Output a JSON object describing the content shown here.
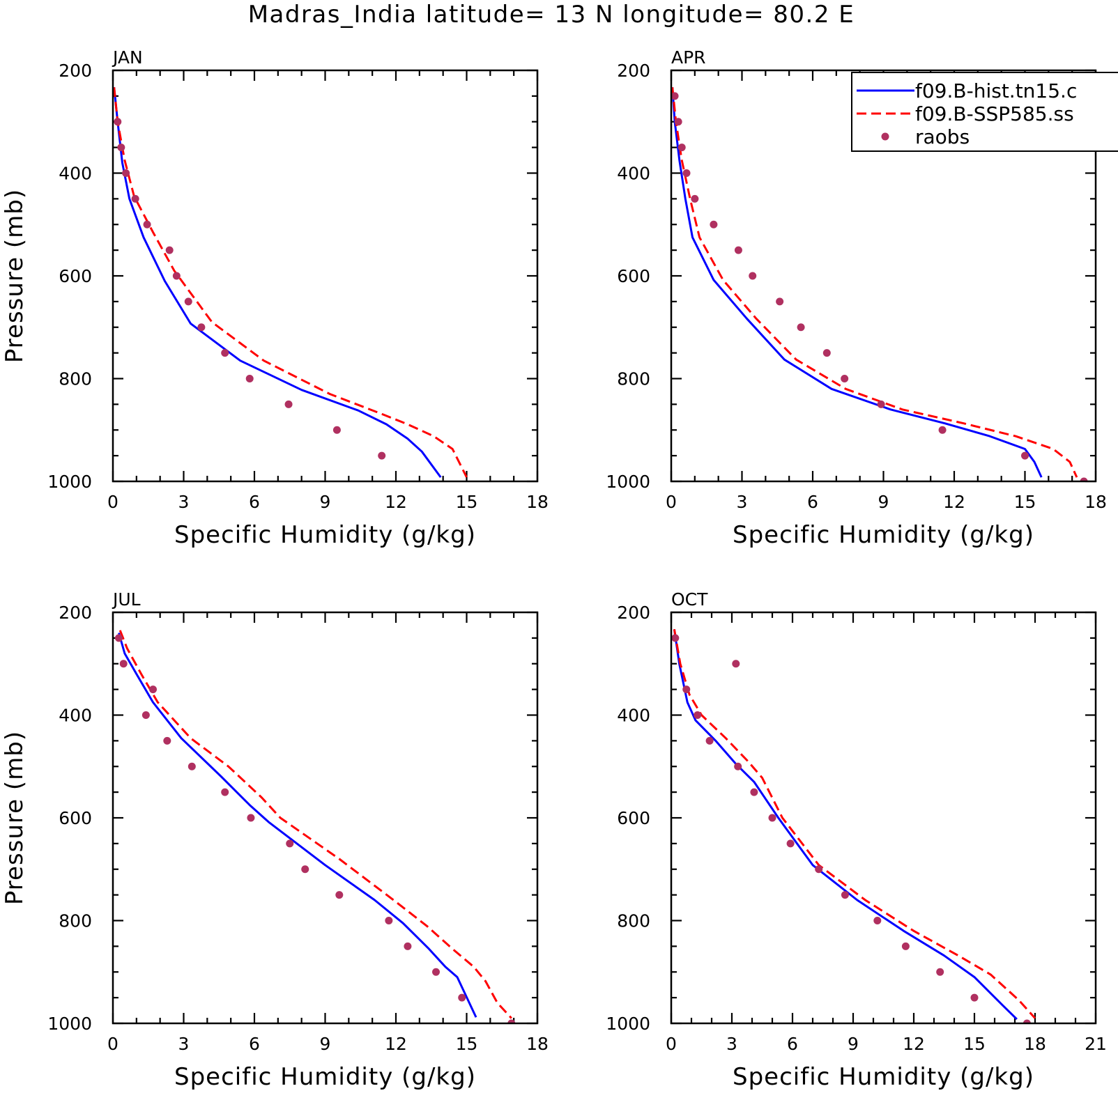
{
  "figure": {
    "title": "Madras_India  latitude= 13 N longitude= 80.2 E"
  },
  "legend": {
    "entries": [
      {
        "label": "f09.B-hist.tn15.c",
        "style": "solid",
        "color": "#0000ff"
      },
      {
        "label": "f09.B-SSP585.ss",
        "style": "dashed",
        "color": "#ff0000"
      },
      {
        "label": "raobs",
        "style": "marker",
        "color": "#b03060"
      }
    ]
  },
  "chart_data": [
    {
      "type": "line",
      "panel": "JAN",
      "xlabel": "Specific Humidity (g/kg)",
      "ylabel": "Pressure (mb)",
      "xlim": [
        0,
        18
      ],
      "ylim": [
        200,
        1000
      ],
      "y_inverted": true,
      "xticks": [
        "0",
        "3",
        "6",
        "9",
        "12",
        "15",
        "18"
      ],
      "yticks": [
        "200",
        "400",
        "600",
        "800",
        "1000"
      ],
      "series": [
        {
          "name": "f09.B-hist.tn15.c",
          "color": "#0000ff",
          "style": "solid",
          "x": [
            0.05,
            0.2,
            0.4,
            0.7,
            1.3,
            2.2,
            3.3,
            5.4,
            8.0,
            10.4,
            11.6,
            12.5,
            13.1,
            13.9
          ],
          "y": [
            233,
            300,
            380,
            450,
            525,
            610,
            693,
            765,
            822,
            862,
            889,
            917,
            942,
            992
          ]
        },
        {
          "name": "f09.B-SSP585.ss",
          "color": "#ff0000",
          "style": "dashed",
          "x": [
            0.05,
            0.2,
            0.5,
            0.9,
            1.7,
            2.6,
            4.2,
            6.4,
            9.2,
            11.3,
            12.5,
            13.6,
            14.4,
            15.0
          ],
          "y": [
            233,
            300,
            375,
            445,
            515,
            590,
            690,
            765,
            830,
            867,
            889,
            912,
            937,
            992
          ]
        },
        {
          "name": "raobs",
          "color": "#b03060",
          "style": "marker",
          "x": [
            0.2,
            0.35,
            0.55,
            0.95,
            1.45,
            2.4,
            2.7,
            3.2,
            3.75,
            4.75,
            5.8,
            7.45,
            9.5,
            11.4
          ],
          "y": [
            300,
            350,
            400,
            450,
            500,
            550,
            600,
            650,
            700,
            750,
            800,
            850,
            900,
            950
          ]
        }
      ]
    },
    {
      "type": "line",
      "panel": "APR",
      "xlabel": "Specific Humidity (g/kg)",
      "ylabel": "",
      "xlim": [
        0,
        18
      ],
      "ylim": [
        200,
        1000
      ],
      "y_inverted": true,
      "xticks": [
        "0",
        "3",
        "6",
        "9",
        "12",
        "15",
        "18"
      ],
      "yticks": [
        "200",
        "400",
        "600",
        "800",
        "1000"
      ],
      "series": [
        {
          "name": "f09.B-hist.tn15.c",
          "color": "#0000ff",
          "style": "solid",
          "x": [
            0.05,
            0.15,
            0.35,
            0.6,
            0.9,
            1.8,
            3.2,
            4.8,
            6.8,
            9.3,
            11.6,
            13.5,
            15.0,
            15.4,
            15.7
          ],
          "y": [
            233,
            300,
            375,
            450,
            525,
            608,
            683,
            763,
            820,
            860,
            887,
            912,
            937,
            962,
            992
          ]
        },
        {
          "name": "f09.B-SSP585.ss",
          "color": "#ff0000",
          "style": "dashed",
          "x": [
            0.05,
            0.2,
            0.45,
            0.8,
            1.2,
            2.2,
            3.6,
            5.3,
            7.4,
            9.8,
            12.4,
            14.6,
            16.2,
            16.9,
            17.2
          ],
          "y": [
            233,
            300,
            375,
            450,
            525,
            608,
            683,
            763,
            820,
            860,
            887,
            912,
            937,
            962,
            992
          ]
        },
        {
          "name": "raobs",
          "color": "#b03060",
          "style": "marker",
          "x": [
            0.15,
            0.3,
            0.45,
            0.65,
            1.0,
            1.8,
            2.85,
            3.45,
            4.6,
            5.5,
            6.6,
            7.35,
            8.9,
            11.5,
            15.0,
            17.5
          ],
          "y": [
            250,
            300,
            350,
            400,
            450,
            500,
            550,
            600,
            650,
            700,
            750,
            800,
            850,
            900,
            950,
            1000
          ]
        }
      ]
    },
    {
      "type": "line",
      "panel": "JUL",
      "xlabel": "Specific Humidity (g/kg)",
      "ylabel": "Pressure (mb)",
      "xlim": [
        0,
        18
      ],
      "ylim": [
        200,
        1000
      ],
      "y_inverted": true,
      "xticks": [
        "0",
        "3",
        "6",
        "9",
        "12",
        "15",
        "18"
      ],
      "yticks": [
        "200",
        "400",
        "600",
        "800",
        "1000"
      ],
      "series": [
        {
          "name": "f09.B-hist.tn15.c",
          "color": "#0000ff",
          "style": "solid",
          "x": [
            0.25,
            0.5,
            1.0,
            1.7,
            2.9,
            4.6,
            5.8,
            6.6,
            9.0,
            11.1,
            12.3,
            13.4,
            14.1,
            14.6,
            15.4
          ],
          "y": [
            240,
            280,
            320,
            375,
            445,
            520,
            575,
            608,
            692,
            760,
            805,
            855,
            890,
            910,
            988
          ]
        },
        {
          "name": "f09.B-SSP585.ss",
          "color": "#ff0000",
          "style": "dashed",
          "x": [
            0.3,
            0.6,
            1.2,
            1.9,
            3.3,
            4.9,
            6.3,
            7.1,
            9.6,
            11.9,
            13.3,
            14.4,
            15.3,
            15.8,
            16.3,
            16.9
          ],
          "y": [
            235,
            270,
            320,
            375,
            445,
            500,
            560,
            600,
            680,
            760,
            810,
            855,
            890,
            918,
            960,
            990
          ]
        },
        {
          "name": "raobs",
          "color": "#b03060",
          "style": "marker",
          "x": [
            0.25,
            0.45,
            1.7,
            1.4,
            2.3,
            3.35,
            4.75,
            5.85,
            7.5,
            8.15,
            9.6,
            11.7,
            12.5,
            13.7,
            14.8,
            16.9
          ],
          "y": [
            250,
            300,
            350,
            400,
            450,
            500,
            550,
            600,
            650,
            700,
            750,
            800,
            850,
            900,
            950,
            1000
          ]
        }
      ]
    },
    {
      "type": "line",
      "panel": "OCT",
      "xlabel": "Specific Humidity (g/kg)",
      "ylabel": "",
      "xlim": [
        0,
        21
      ],
      "ylim": [
        200,
        1000
      ],
      "y_inverted": true,
      "xticks": [
        "0",
        "3",
        "6",
        "9",
        "12",
        "15",
        "18",
        "21"
      ],
      "yticks": [
        "200",
        "400",
        "600",
        "800",
        "1000"
      ],
      "series": [
        {
          "name": "f09.B-hist.tn15.c",
          "color": "#0000ff",
          "style": "solid",
          "x": [
            0.15,
            0.4,
            0.8,
            1.2,
            2.2,
            3.2,
            4.1,
            5.3,
            7.0,
            9.2,
            11.5,
            13.5,
            15.0,
            16.4,
            17.1
          ],
          "y": [
            233,
            300,
            375,
            410,
            450,
            495,
            530,
            600,
            692,
            760,
            820,
            868,
            910,
            965,
            992
          ]
        },
        {
          "name": "f09.B-SSP585.ss",
          "color": "#ff0000",
          "style": "dashed",
          "x": [
            0.15,
            0.45,
            0.9,
            1.5,
            2.7,
            3.8,
            4.5,
            5.5,
            7.3,
            9.6,
            12.0,
            14.2,
            15.8,
            17.2,
            18.0
          ],
          "y": [
            233,
            300,
            360,
            400,
            445,
            490,
            522,
            600,
            692,
            760,
            820,
            868,
            905,
            955,
            990
          ]
        },
        {
          "name": "raobs",
          "color": "#b03060",
          "style": "marker",
          "x": [
            0.2,
            3.2,
            0.75,
            1.3,
            1.9,
            3.3,
            4.1,
            5.0,
            5.9,
            7.3,
            8.6,
            10.2,
            11.6,
            13.3,
            15.0,
            17.6
          ],
          "y": [
            250,
            300,
            350,
            400,
            450,
            500,
            550,
            600,
            650,
            700,
            750,
            800,
            850,
            900,
            950,
            1000
          ]
        }
      ]
    }
  ]
}
